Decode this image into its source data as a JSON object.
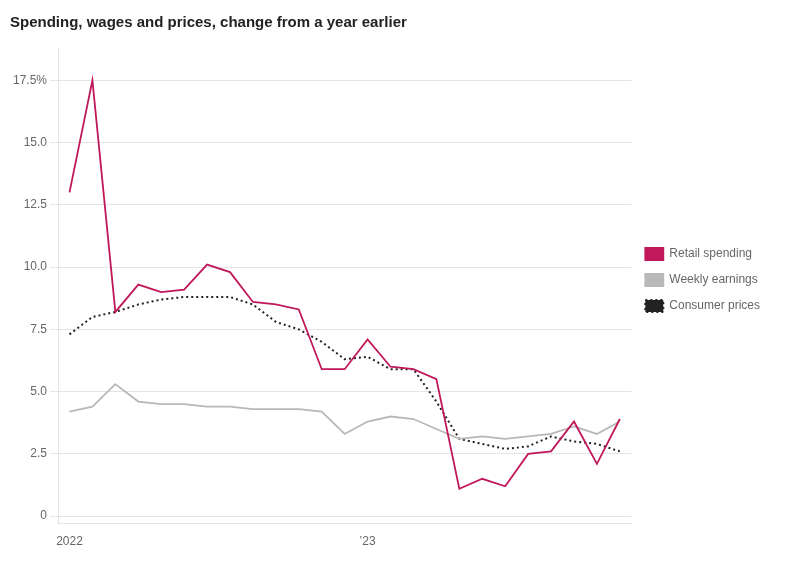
{
  "chart_data": {
    "type": "line",
    "title": "Spending, wages and prices, change from a year earlier",
    "categories": [
      "2022",
      null,
      null,
      null,
      null,
      null,
      null,
      null,
      null,
      null,
      null,
      null,
      null,
      "’23",
      null,
      null,
      null,
      null,
      null,
      null,
      null,
      null,
      null,
      null,
      null
    ],
    "series": [
      {
        "name": "Retail spending",
        "color": "#c0185a",
        "line_style": "solid",
        "values": [
          13.0,
          17.5,
          8.2,
          9.3,
          9.0,
          9.1,
          10.1,
          9.8,
          8.6,
          8.5,
          8.3,
          5.9,
          5.9,
          7.1,
          6.0,
          5.9,
          5.5,
          1.1,
          1.5,
          1.2,
          2.5,
          2.6,
          3.8,
          2.1,
          3.9
        ]
      },
      {
        "name": "Weekly earnings",
        "color": "#b8b8b8",
        "line_style": "solid",
        "values": [
          4.2,
          4.4,
          5.3,
          4.6,
          4.5,
          4.5,
          4.4,
          4.4,
          4.3,
          4.3,
          4.3,
          4.2,
          3.3,
          3.8,
          4.0,
          3.9,
          3.5,
          3.1,
          3.2,
          3.1,
          3.2,
          3.3,
          3.6,
          3.3,
          3.8
        ]
      },
      {
        "name": "Consumer prices",
        "color": "#222222",
        "line_style": "dotted",
        "values": [
          7.3,
          8.0,
          8.2,
          8.5,
          8.7,
          8.8,
          8.8,
          8.8,
          8.5,
          7.8,
          7.5,
          7.0,
          6.3,
          6.4,
          5.9,
          5.9,
          4.6,
          3.1,
          2.9,
          2.7,
          2.8,
          3.2,
          3.0,
          2.9,
          2.6
        ]
      }
    ],
    "ylim": [
      -0.3,
      18.8
    ],
    "yticks": [
      0,
      2.5,
      {
        "value": 5,
        "label": "5.0"
      },
      7.5,
      {
        "value": 10,
        "label": "10.0"
      },
      12.5,
      {
        "value": 15,
        "label": "15.0"
      },
      {
        "value": 17.5,
        "label": "17.5%"
      }
    ],
    "grid": "y",
    "legend": "right"
  }
}
